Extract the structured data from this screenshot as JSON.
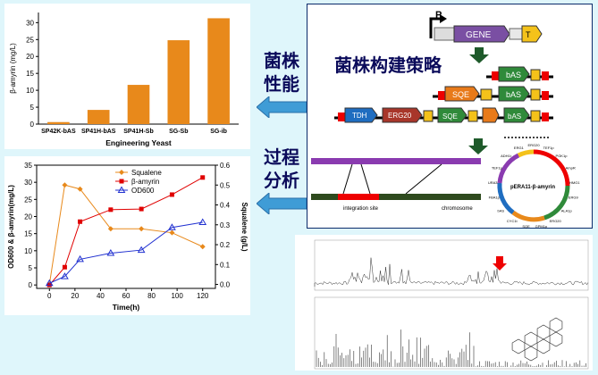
{
  "bar_chart": {
    "ylabel": "β-amyrin (mg/L)",
    "xlabel": "Engineering Yeast",
    "categories": [
      "SP42K-bAS",
      "SP41H-bAS",
      "SP41H-Sb",
      "SG-Sb",
      "SG-ib"
    ],
    "values": [
      0.6,
      4.2,
      11.6,
      24.8,
      31.3
    ],
    "yticks": [
      0,
      5,
      10,
      15,
      20,
      25,
      30
    ],
    "ylim": [
      0,
      33
    ],
    "color": "#e8891b"
  },
  "line_chart": {
    "xlabel": "Time(h)",
    "ylabel_left": "OD600 & β-amyrin(mg/L)",
    "ylabel_right": "Squalene (g/L)",
    "xticks": [
      0,
      20,
      40,
      60,
      80,
      100,
      120
    ],
    "yticks_left": [
      0,
      5,
      10,
      15,
      20,
      25,
      30,
      35
    ],
    "yticks_right": [
      "0.0",
      "0.1",
      "0.2",
      "0.3",
      "0.4",
      "0.5",
      "0.6"
    ],
    "xlim": [
      -10,
      130
    ],
    "ylim_left": [
      -1,
      35
    ],
    "ylim_right": [
      -0.02,
      0.6
    ],
    "legend": [
      "Squalene",
      "β-amyrin",
      "OD600"
    ],
    "series": [
      {
        "name": "Squalene",
        "axis": "right",
        "color": "#e8891b",
        "x": [
          0,
          12,
          24,
          48,
          72,
          96,
          120
        ],
        "y": [
          0.0,
          0.5,
          0.48,
          0.28,
          0.28,
          0.26,
          0.19
        ]
      },
      {
        "name": "β-amyrin",
        "axis": "left",
        "color": "#e00000",
        "x": [
          0,
          12,
          24,
          48,
          72,
          96,
          120
        ],
        "y": [
          0,
          5.2,
          18.5,
          22,
          22.2,
          26.4,
          31.4
        ]
      },
      {
        "name": "OD600",
        "axis": "left",
        "color": "#2030d0",
        "x": [
          0,
          12,
          24,
          48,
          72,
          96,
          120
        ],
        "y": [
          0.5,
          2.5,
          7.5,
          9.3,
          10.2,
          16.8,
          18.3
        ]
      }
    ]
  },
  "labels": {
    "strain_performance": [
      "菌株",
      "性能"
    ],
    "process_analysis": [
      "过程",
      "分析"
    ],
    "strategy_title": "菌株构建策略",
    "gene": "GENE",
    "promoter": "P",
    "terminator": "T",
    "bas": "bAS",
    "sqe": "SQE",
    "ter": "Ter",
    "erg20": "ERG20",
    "tdh": "TDH",
    "integration_site": "integration site",
    "chromosome": "chromosome",
    "plasmid_name": "pERA11-β-amyrin"
  },
  "plasmid_labels": [
    "ERG20",
    "TEF1p",
    "PGK1p",
    "AmpR",
    "HMG1",
    "ERG9",
    "ALA1p",
    "ERG20",
    "GPM1p",
    "SQE",
    "CYC1t",
    "bAS",
    "FBA1p",
    "URA3",
    "TEF1p",
    "ADH1t",
    "ERG1"
  ]
}
